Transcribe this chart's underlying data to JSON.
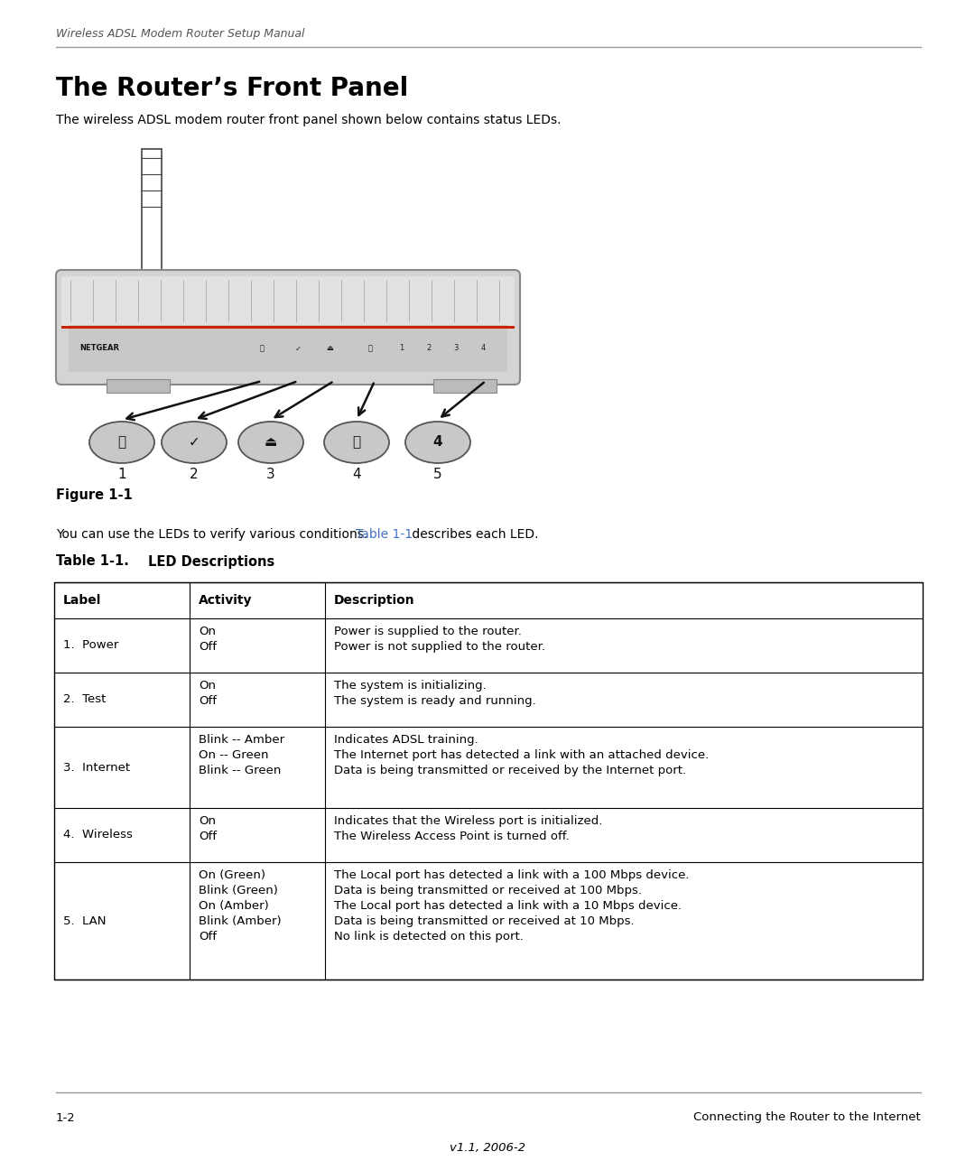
{
  "header_italic": "Wireless ADSL Modem Router Setup Manual",
  "title": "The Router’s Front Panel",
  "subtitle": "The wireless ADSL modem router front panel shown below contains status LEDs.",
  "figure_caption": "Figure 1-1",
  "table_intro_plain": "You can use the LEDs to verify various conditions. ",
  "table_intro_link": "Table 1-1",
  "table_intro_rest": " describes each LED.",
  "table_title_bold": "Table 1-1.",
  "table_title_rest": "        LED Descriptions",
  "col_headers": [
    "Label",
    "Activity",
    "Description"
  ],
  "rows": [
    {
      "label": "1.  Power",
      "activity": [
        "On",
        "Off"
      ],
      "description": [
        "Power is supplied to the router.",
        "Power is not supplied to the router."
      ]
    },
    {
      "label": "2.  Test",
      "activity": [
        "On",
        "Off"
      ],
      "description": [
        "The system is initializing.",
        "The system is ready and running."
      ]
    },
    {
      "label": "3.  Internet",
      "activity": [
        "Blink -- Amber",
        "On -- Green",
        "Blink -- Green"
      ],
      "description": [
        "Indicates ADSL training.",
        "The Internet port has detected a link with an attached device.",
        "Data is being transmitted or received by the Internet port."
      ]
    },
    {
      "label": "4.  Wireless",
      "activity": [
        "On",
        "Off"
      ],
      "description": [
        "Indicates that the Wireless port is initialized.",
        "The Wireless Access Point is turned off."
      ]
    },
    {
      "label": "5.  LAN",
      "activity": [
        "On (Green)",
        "Blink (Green)",
        "On (Amber)",
        "Blink (Amber)",
        "Off"
      ],
      "description": [
        "The Local port has detected a link with a 100 Mbps device.",
        "Data is being transmitted or received at 100 Mbps.",
        "The Local port has detected a link with a 10 Mbps device.",
        "Data is being transmitted or received at 10 Mbps.",
        "No link is detected on this port."
      ]
    }
  ],
  "footer_left": "1-2",
  "footer_right": "Connecting the Router to the Internet",
  "footer_center": "v1.1, 2006-2",
  "bg_color": "#ffffff",
  "text_color": "#000000",
  "link_color": "#4472C4",
  "header_color": "#555555",
  "table_border_color": "#000000"
}
